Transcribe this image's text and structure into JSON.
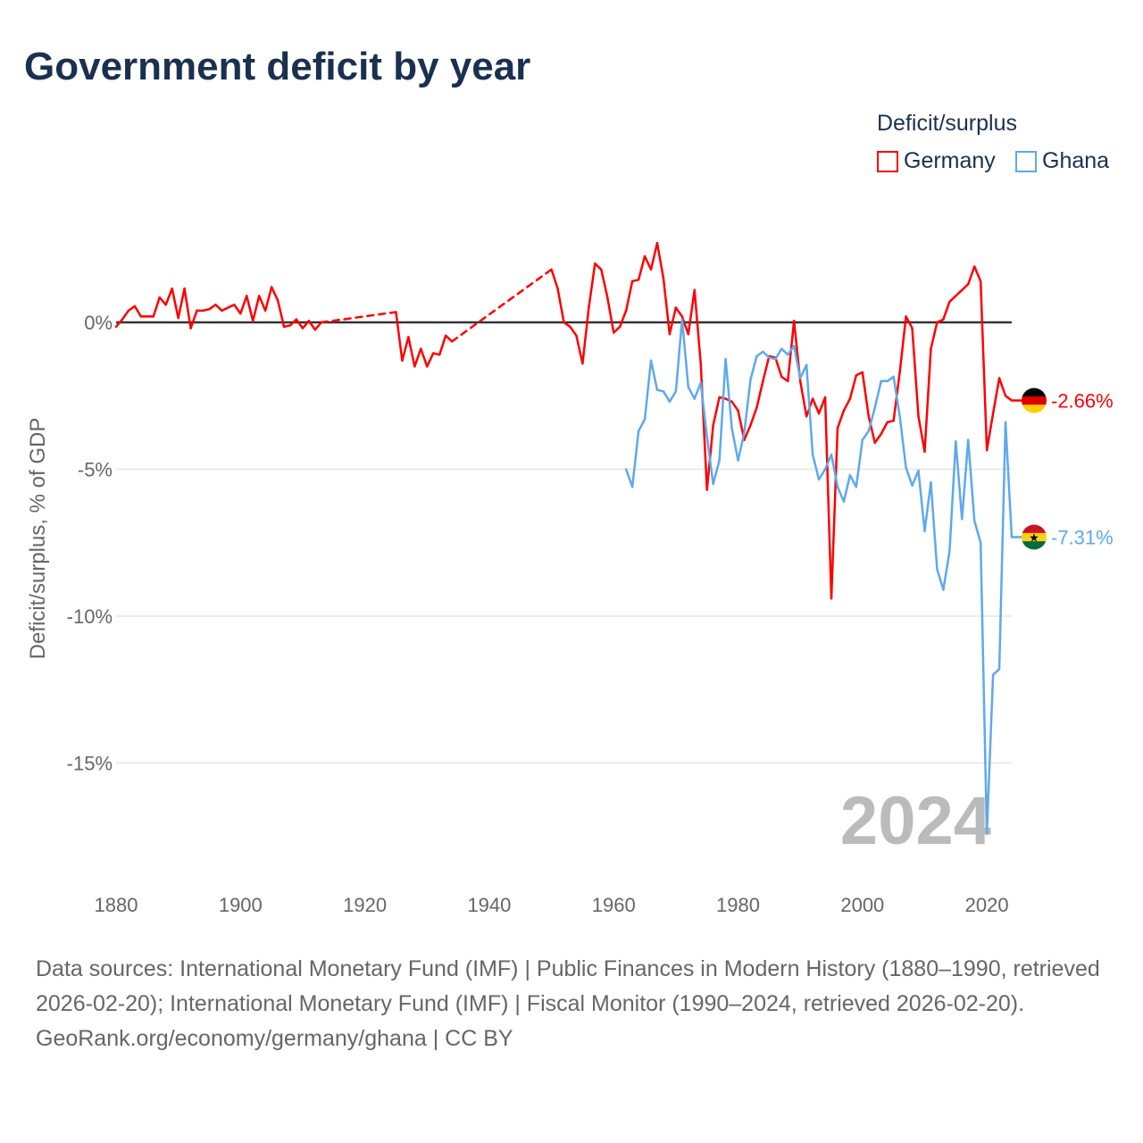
{
  "title": "Government deficit by year",
  "legend": {
    "title": "Deficit/surplus",
    "items": [
      {
        "name": "Germany",
        "color": "#ff0000"
      },
      {
        "name": "Ghana",
        "color": "#5ea9ec"
      }
    ]
  },
  "chart_data": {
    "type": "line",
    "title": "Government deficit by year",
    "xlabel": "",
    "ylabel": "Deficit/surplus, % of GDP",
    "xlim": [
      1880,
      2024
    ],
    "ylim": [
      -18,
      3
    ],
    "x_ticks": [
      "1880",
      "1900",
      "1920",
      "1940",
      "1960",
      "1980",
      "2000",
      "2020"
    ],
    "y_ticks": [
      {
        "value": 0,
        "label": "0%"
      },
      {
        "value": -5,
        "label": "-5%"
      },
      {
        "value": -10,
        "label": "-10%"
      },
      {
        "value": -15,
        "label": "-15%"
      }
    ],
    "year_watermark": "2024",
    "series": [
      {
        "name": "Germany",
        "color": "#ff0000",
        "end_label": "-2.66%",
        "points": [
          [
            1880,
            -0.15
          ],
          [
            1881,
            0.1
          ],
          [
            1882,
            0.4
          ],
          [
            1883,
            0.55
          ],
          [
            1884,
            0.2
          ],
          [
            1885,
            0.2
          ],
          [
            1886,
            0.2
          ],
          [
            1887,
            0.85
          ],
          [
            1888,
            0.6
          ],
          [
            1889,
            1.15
          ],
          [
            1890,
            0.15
          ],
          [
            1891,
            1.15
          ],
          [
            1892,
            -0.2
          ],
          [
            1893,
            0.4
          ],
          [
            1894,
            0.4
          ],
          [
            1895,
            0.45
          ],
          [
            1896,
            0.6
          ],
          [
            1897,
            0.4
          ],
          [
            1898,
            0.5
          ],
          [
            1899,
            0.6
          ],
          [
            1900,
            0.3
          ],
          [
            1901,
            0.9
          ],
          [
            1902,
            0.05
          ],
          [
            1903,
            0.9
          ],
          [
            1904,
            0.4
          ],
          [
            1905,
            1.2
          ],
          [
            1906,
            0.75
          ],
          [
            1907,
            -0.15
          ],
          [
            1908,
            -0.1
          ],
          [
            1909,
            0.1
          ],
          [
            1910,
            -0.2
          ],
          [
            1911,
            0.05
          ],
          [
            1912,
            -0.25
          ],
          [
            1913,
            0
          ],
          [
            1925,
            0.35
          ],
          [
            1926,
            -1.3
          ],
          [
            1927,
            -0.5
          ],
          [
            1928,
            -1.5
          ],
          [
            1929,
            -0.9
          ],
          [
            1930,
            -1.5
          ],
          [
            1931,
            -1.05
          ],
          [
            1932,
            -1.1
          ],
          [
            1933,
            -0.45
          ],
          [
            1934,
            -0.65
          ],
          [
            1950,
            1.8
          ],
          [
            1951,
            1.15
          ],
          [
            1952,
            0
          ],
          [
            1953,
            -0.15
          ],
          [
            1954,
            -0.45
          ],
          [
            1955,
            -1.4
          ],
          [
            1956,
            0.5
          ],
          [
            1957,
            2.0
          ],
          [
            1958,
            1.8
          ],
          [
            1959,
            0.85
          ],
          [
            1960,
            -0.35
          ],
          [
            1961,
            -0.15
          ],
          [
            1962,
            0.4
          ],
          [
            1963,
            1.4
          ],
          [
            1964,
            1.45
          ],
          [
            1965,
            2.25
          ],
          [
            1966,
            1.8
          ],
          [
            1967,
            2.7
          ],
          [
            1968,
            1.5
          ],
          [
            1969,
            -0.4
          ],
          [
            1970,
            0.5
          ],
          [
            1971,
            0.2
          ],
          [
            1972,
            -0.4
          ],
          [
            1973,
            1.1
          ],
          [
            1974,
            -1.4
          ],
          [
            1975,
            -5.7
          ],
          [
            1976,
            -3.5
          ],
          [
            1977,
            -2.55
          ],
          [
            1978,
            -2.6
          ],
          [
            1979,
            -2.7
          ],
          [
            1980,
            -3.0
          ],
          [
            1981,
            -4.0
          ],
          [
            1982,
            -3.5
          ],
          [
            1983,
            -2.9
          ],
          [
            1984,
            -2.0
          ],
          [
            1985,
            -1.15
          ],
          [
            1986,
            -1.2
          ],
          [
            1987,
            -1.85
          ],
          [
            1988,
            -2.0
          ],
          [
            1989,
            0.05
          ],
          [
            1990,
            -2.0
          ],
          [
            1991,
            -3.2
          ],
          [
            1992,
            -2.6
          ],
          [
            1993,
            -3.1
          ],
          [
            1994,
            -2.55
          ],
          [
            1995,
            -9.4
          ],
          [
            1996,
            -3.6
          ],
          [
            1997,
            -3.0
          ],
          [
            1998,
            -2.6
          ],
          [
            1999,
            -1.8
          ],
          [
            2000,
            -1.7
          ],
          [
            2001,
            -3.2
          ],
          [
            2002,
            -4.1
          ],
          [
            2003,
            -3.8
          ],
          [
            2004,
            -3.4
          ],
          [
            2005,
            -3.35
          ],
          [
            2006,
            -1.7
          ],
          [
            2007,
            0.2
          ],
          [
            2008,
            -0.2
          ],
          [
            2009,
            -3.2
          ],
          [
            2010,
            -4.4
          ],
          [
            2011,
            -0.9
          ],
          [
            2012,
            0
          ],
          [
            2013,
            0.1
          ],
          [
            2014,
            0.7
          ],
          [
            2015,
            0.9
          ],
          [
            2016,
            1.1
          ],
          [
            2017,
            1.3
          ],
          [
            2018,
            1.9
          ],
          [
            2019,
            1.4
          ],
          [
            2020,
            -4.35
          ],
          [
            2021,
            -3.1
          ],
          [
            2022,
            -1.9
          ],
          [
            2023,
            -2.5
          ],
          [
            2024,
            -2.66
          ]
        ]
      },
      {
        "name": "Ghana",
        "color": "#5ea9ec",
        "end_label": "-7.31%",
        "points": [
          [
            1962,
            -5.0
          ],
          [
            1963,
            -5.6
          ],
          [
            1964,
            -3.7
          ],
          [
            1965,
            -3.3
          ],
          [
            1966,
            -1.3
          ],
          [
            1967,
            -2.3
          ],
          [
            1968,
            -2.35
          ],
          [
            1969,
            -2.7
          ],
          [
            1970,
            -2.35
          ],
          [
            1971,
            0.1
          ],
          [
            1972,
            -2.2
          ],
          [
            1973,
            -2.6
          ],
          [
            1974,
            -2.05
          ],
          [
            1975,
            -3.9
          ],
          [
            1976,
            -5.5
          ],
          [
            1977,
            -4.7
          ],
          [
            1978,
            -1.25
          ],
          [
            1979,
            -3.6
          ],
          [
            1980,
            -4.7
          ],
          [
            1981,
            -3.75
          ],
          [
            1982,
            -1.95
          ],
          [
            1983,
            -1.15
          ],
          [
            1984,
            -1.0
          ],
          [
            1985,
            -1.2
          ],
          [
            1986,
            -1.25
          ],
          [
            1987,
            -0.9
          ],
          [
            1988,
            -1.1
          ],
          [
            1989,
            -0.8
          ],
          [
            1990,
            -1.9
          ],
          [
            1991,
            -1.45
          ],
          [
            1992,
            -4.5
          ],
          [
            1993,
            -5.35
          ],
          [
            1994,
            -5.0
          ],
          [
            1995,
            -4.5
          ],
          [
            1996,
            -5.6
          ],
          [
            1997,
            -6.1
          ],
          [
            1998,
            -5.2
          ],
          [
            1999,
            -5.6
          ],
          [
            2000,
            -4.0
          ],
          [
            2001,
            -3.7
          ],
          [
            2002,
            -2.9
          ],
          [
            2003,
            -2.0
          ],
          [
            2004,
            -2.0
          ],
          [
            2005,
            -1.85
          ],
          [
            2006,
            -3.2
          ],
          [
            2007,
            -4.95
          ],
          [
            2008,
            -5.55
          ],
          [
            2009,
            -5.05
          ],
          [
            2010,
            -7.1
          ],
          [
            2011,
            -5.45
          ],
          [
            2012,
            -8.4
          ],
          [
            2013,
            -9.1
          ],
          [
            2014,
            -7.8
          ],
          [
            2015,
            -4.05
          ],
          [
            2016,
            -6.7
          ],
          [
            2017,
            -4.0
          ],
          [
            2018,
            -6.75
          ],
          [
            2019,
            -7.5
          ],
          [
            2020,
            -17.4
          ],
          [
            2021,
            -12.0
          ],
          [
            2022,
            -11.8
          ],
          [
            2023,
            -3.4
          ],
          [
            2024,
            -7.31
          ]
        ]
      }
    ]
  },
  "footer": {
    "sources": "Data sources: International Monetary Fund (IMF) | Public Finances in Modern History (1880–1990, retrieved 2026-02-20); International Monetary Fund (IMF) | Fiscal Monitor (1990–2024, retrieved 2026-02-20).",
    "credit": "GeoRank.org/economy/germany/ghana | CC BY"
  }
}
